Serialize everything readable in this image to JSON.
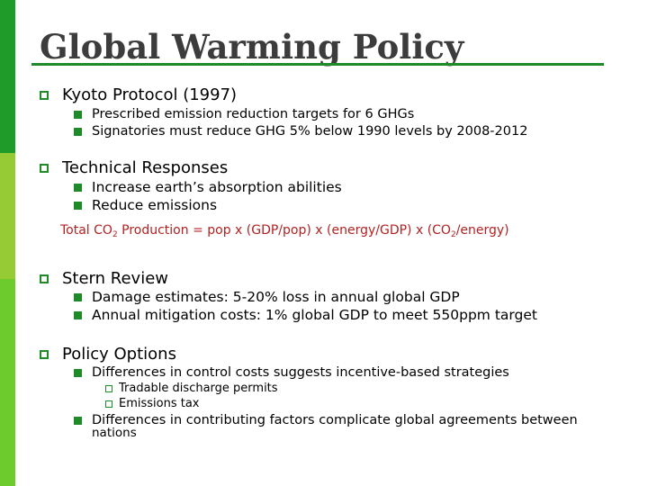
{
  "title": "Global Warming Policy",
  "sections": [
    {
      "heading": "Kyoto Protocol (1997)",
      "items": [
        "Prescribed emission reduction targets for 6 GHGs",
        "Signatories must reduce GHG 5% below 1990 levels by 2008-2012"
      ]
    },
    {
      "heading": "Technical Responses",
      "items": [
        "Increase earth’s absorption abilities",
        "Reduce emissions"
      ],
      "formula": {
        "part1": "Total CO",
        "sub1": "2",
        "part2": " Production = pop x (GDP/pop) x (energy/GDP) x (CO",
        "sub2": "2",
        "part3": "/energy)"
      }
    },
    {
      "heading": "Stern Review",
      "items": [
        "Damage estimates: 5-20% loss in annual global GDP",
        "Annual mitigation costs: 1% global GDP to meet 550ppm target"
      ]
    },
    {
      "heading": "Policy Options",
      "items": [
        "Differences in control costs suggests incentive-based strategies",
        "Differences in contributing factors complicate global agreements between"
      ],
      "item2_continued": "nations",
      "subitems": [
        "Tradable discharge permits",
        "Emissions tax"
      ]
    }
  ],
  "colors": {
    "accent_green": "#1e8a28",
    "bar_dark_green": "#1f9b2a",
    "bar_lime": "#97cb35",
    "bar_light_green": "#6ecb2e",
    "formula_red": "#b22222",
    "title_gray": "#3c3c3c"
  },
  "icons": [
    "hollow-square-bullet-icon",
    "filled-square-bullet-icon"
  ]
}
